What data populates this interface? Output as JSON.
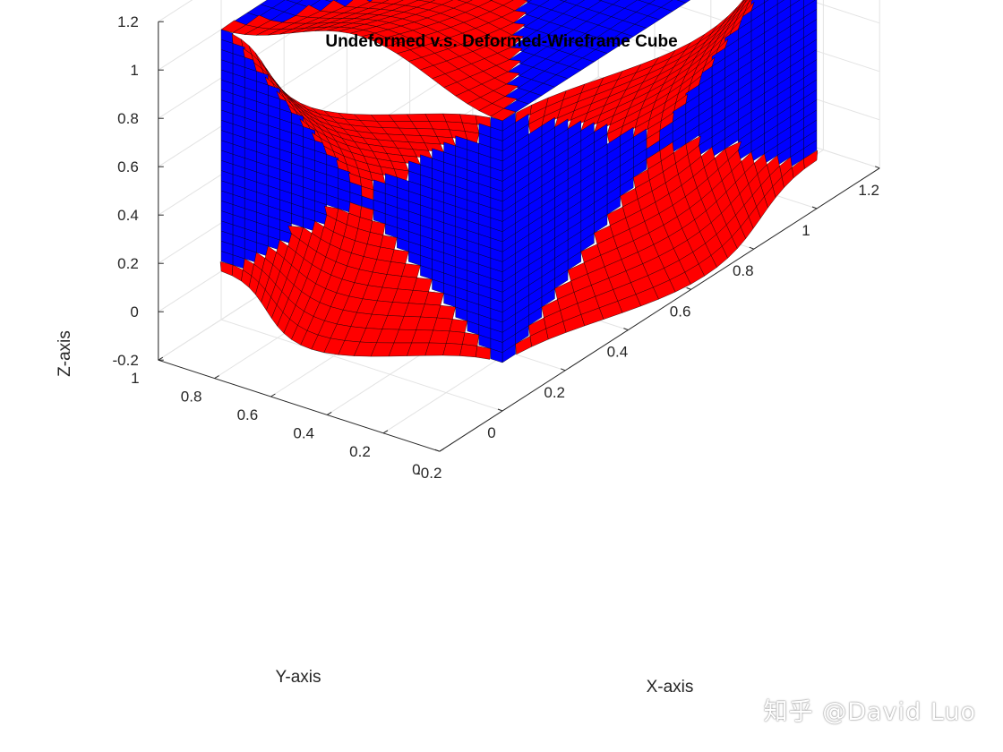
{
  "chart_data": {
    "type": "surface3d",
    "title": "Undeformed v.s. Deformed-Wireframe Cube",
    "xlabel": "X-axis",
    "ylabel": "Y-axis",
    "zlabel": "Z-axis",
    "x_ticks": [
      "-0.2",
      "0",
      "0.2",
      "0.4",
      "0.6",
      "0.8",
      "1",
      "1.2"
    ],
    "y_ticks": [
      "0",
      "0.2",
      "0.4",
      "0.6",
      "0.8",
      "1"
    ],
    "z_ticks": [
      "-0.2",
      "0",
      "0.2",
      "0.4",
      "0.6",
      "0.8",
      "1",
      "1.2"
    ],
    "xlim": [
      -0.2,
      1.2
    ],
    "ylim": [
      0,
      1
    ],
    "zlim": [
      -0.2,
      1.2
    ],
    "grid": true,
    "cube_extent": [
      0,
      1
    ],
    "colors": {
      "undeformed": "#0000ff",
      "deformed": "#ff0000",
      "edges": "#000000"
    }
  },
  "watermark": "知乎 @David Luo"
}
